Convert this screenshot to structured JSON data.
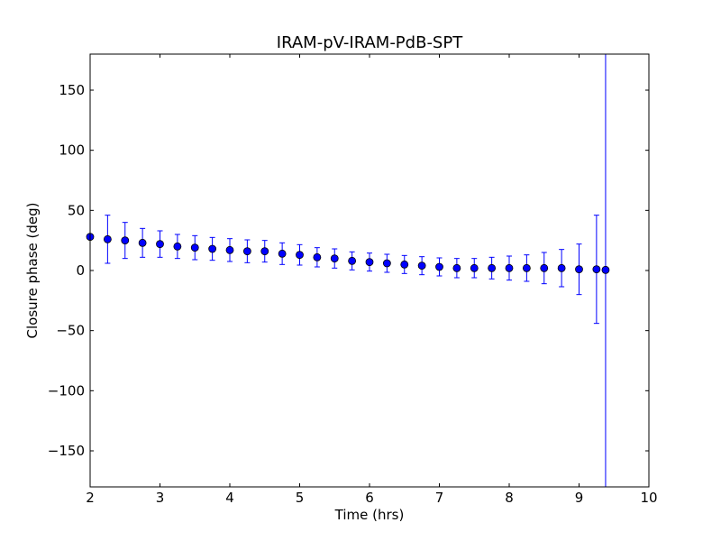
{
  "chart_data": {
    "type": "scatter",
    "title": "IRAM-pV-IRAM-PdB-SPT",
    "xlabel": "Time (hrs)",
    "ylabel": "Closure phase (deg)",
    "xlim": [
      2,
      10
    ],
    "ylim": [
      -180,
      180
    ],
    "xticks": [
      2,
      3,
      4,
      5,
      6,
      7,
      8,
      9,
      10
    ],
    "yticks": [
      -150,
      -100,
      -50,
      0,
      50,
      100,
      150
    ],
    "xtick_labels": [
      "2",
      "3",
      "4",
      "5",
      "6",
      "7",
      "8",
      "9",
      "10"
    ],
    "ytick_labels": [
      "−150",
      "−100",
      "−50",
      "0",
      "50",
      "100",
      "150"
    ],
    "grid": false,
    "marker_color": "#0000ff",
    "errorbar_color": "#0000ff",
    "points": [
      {
        "x": 2.0,
        "y": 28,
        "err": 0
      },
      {
        "x": 2.25,
        "y": 26,
        "err": 20
      },
      {
        "x": 2.5,
        "y": 25,
        "err": 15
      },
      {
        "x": 2.75,
        "y": 23,
        "err": 12
      },
      {
        "x": 3.0,
        "y": 22,
        "err": 11
      },
      {
        "x": 3.25,
        "y": 20,
        "err": 10
      },
      {
        "x": 3.5,
        "y": 19,
        "err": 10
      },
      {
        "x": 3.75,
        "y": 18,
        "err": 9.5
      },
      {
        "x": 4.0,
        "y": 17,
        "err": 9.5
      },
      {
        "x": 4.25,
        "y": 16,
        "err": 9.5
      },
      {
        "x": 4.5,
        "y": 16,
        "err": 9
      },
      {
        "x": 4.75,
        "y": 14,
        "err": 9
      },
      {
        "x": 5.0,
        "y": 13,
        "err": 8.5
      },
      {
        "x": 5.25,
        "y": 11,
        "err": 8
      },
      {
        "x": 5.5,
        "y": 10,
        "err": 8
      },
      {
        "x": 5.75,
        "y": 8,
        "err": 7.5
      },
      {
        "x": 6.0,
        "y": 7,
        "err": 7.5
      },
      {
        "x": 6.25,
        "y": 6,
        "err": 7.5
      },
      {
        "x": 6.5,
        "y": 5,
        "err": 7.5
      },
      {
        "x": 6.75,
        "y": 4,
        "err": 7.5
      },
      {
        "x": 7.0,
        "y": 3,
        "err": 7.5
      },
      {
        "x": 7.25,
        "y": 2,
        "err": 8
      },
      {
        "x": 7.5,
        "y": 2,
        "err": 8
      },
      {
        "x": 7.75,
        "y": 2,
        "err": 9
      },
      {
        "x": 8.0,
        "y": 2,
        "err": 10
      },
      {
        "x": 8.25,
        "y": 2,
        "err": 11
      },
      {
        "x": 8.5,
        "y": 2,
        "err": 13
      },
      {
        "x": 8.75,
        "y": 2,
        "err": 15.5
      },
      {
        "x": 9.0,
        "y": 1,
        "err": 21
      },
      {
        "x": 9.25,
        "y": 1,
        "err": 45
      },
      {
        "x": 9.38,
        "y": 0.5,
        "err": 300
      }
    ]
  }
}
